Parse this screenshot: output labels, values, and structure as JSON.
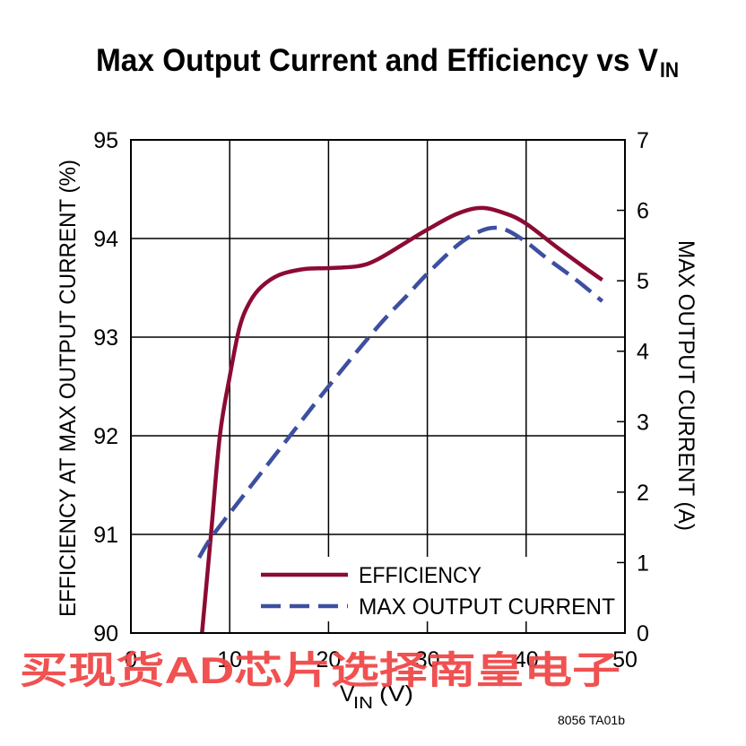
{
  "chart_data": {
    "type": "line",
    "title": "Max Output Current and Efficiency vs V",
    "title_subscript": "IN",
    "xlabel": "V",
    "xlabel_subscript": "IN",
    "xlabel_unit": "(V)",
    "xlim": [
      0,
      50
    ],
    "x_ticks": [
      0,
      10,
      20,
      30,
      40,
      50
    ],
    "y_left": {
      "label": "EFFICIENCY AT MAX OUTPUT CURRENT (%)",
      "lim": [
        90,
        95
      ],
      "ticks": [
        90,
        91,
        92,
        93,
        94,
        95
      ]
    },
    "y_right": {
      "label": "MAX OUTPUT CURRENT (A)",
      "lim": [
        0,
        7
      ],
      "ticks": [
        0,
        1,
        2,
        3,
        4,
        5,
        6,
        7
      ]
    },
    "grid": true,
    "legend_placement": "bottom-right",
    "series": [
      {
        "name": "EFFICIENCY",
        "axis": "left",
        "color": "#8c0b33",
        "style": "solid",
        "x": [
          7.2,
          8.1,
          9,
          10,
          11,
          12,
          13.2,
          15,
          17.5,
          20,
          23,
          25,
          28,
          30,
          33,
          35.5,
          38,
          40,
          43,
          46,
          47.7
        ],
        "y": [
          90.0,
          91.0,
          92.0,
          92.6,
          93.1,
          93.35,
          93.51,
          93.63,
          93.69,
          93.7,
          93.72,
          93.79,
          93.97,
          94.09,
          94.25,
          94.31,
          94.25,
          94.15,
          93.92,
          93.7,
          93.58
        ]
      },
      {
        "name": "MAX OUTPUT CURRENT",
        "axis": "right",
        "color": "#3d4fa0",
        "style": "dashed",
        "x": [
          6.9,
          8,
          10,
          15,
          20,
          25,
          28,
          30,
          33,
          35,
          36.5,
          38,
          40,
          42,
          45,
          47.7
        ],
        "y": [
          1.07,
          1.33,
          1.7,
          2.6,
          3.5,
          4.35,
          4.8,
          5.1,
          5.5,
          5.68,
          5.75,
          5.72,
          5.55,
          5.33,
          5.02,
          4.71
        ]
      }
    ]
  },
  "footer": "8056 TA01b",
  "watermark": "买现货AD芯片选择南皇电子"
}
